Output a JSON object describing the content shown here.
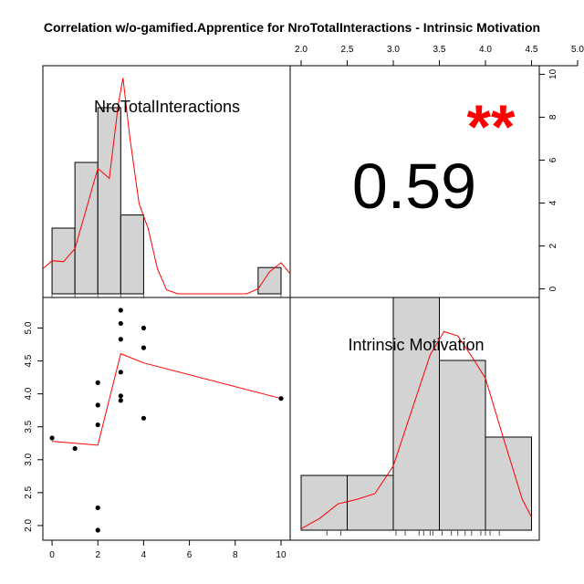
{
  "chart_data": {
    "type": "scatter",
    "title": "Correlation w/o-gamified.Apprentice for NroTotalInteractions - Intrinsic Motivation",
    "variables": [
      "NroTotalInteractions",
      "Intrinsic Motivation"
    ],
    "correlation": {
      "value": "0.59",
      "significance": "**",
      "color": "#ff0000"
    },
    "x_axis": {
      "ticks": [
        "0",
        "2",
        "4",
        "6",
        "8",
        "10"
      ],
      "range": [
        -0.4,
        10.4
      ]
    },
    "y_axis": {
      "ticks": [
        "2.0",
        "2.5",
        "3.0",
        "3.5",
        "4.0",
        "4.5",
        "5.0"
      ],
      "range": [
        1.93,
        5.27
      ]
    },
    "top_axis": {
      "ticks": [
        "2.0",
        "2.5",
        "3.0",
        "3.5",
        "4.0",
        "4.5",
        "5.0"
      ]
    },
    "right_axis": {
      "ticks": [
        "0",
        "2",
        "4",
        "6",
        "8",
        "10"
      ],
      "range": [
        -0.4,
        10.4
      ]
    },
    "scatter_points": [
      {
        "x": 0,
        "y": 3.33
      },
      {
        "x": 1,
        "y": 3.17
      },
      {
        "x": 2,
        "y": 1.93
      },
      {
        "x": 2,
        "y": 2.27
      },
      {
        "x": 2,
        "y": 3.53
      },
      {
        "x": 2,
        "y": 3.83
      },
      {
        "x": 2,
        "y": 4.17
      },
      {
        "x": 3,
        "y": 3.9
      },
      {
        "x": 3,
        "y": 3.97
      },
      {
        "x": 3,
        "y": 4.33
      },
      {
        "x": 3,
        "y": 4.83
      },
      {
        "x": 3,
        "y": 5.07
      },
      {
        "x": 3,
        "y": 5.27
      },
      {
        "x": 4,
        "y": 3.63
      },
      {
        "x": 4,
        "y": 4.7
      },
      {
        "x": 4,
        "y": 5.0
      },
      {
        "x": 10,
        "y": 3.93
      }
    ],
    "smooth_line": [
      {
        "x": 0,
        "y": 3.28
      },
      {
        "x": 2,
        "y": 3.22
      },
      {
        "x": 3,
        "y": 4.61
      },
      {
        "x": 4,
        "y": 4.47
      },
      {
        "x": 10,
        "y": 3.93
      }
    ],
    "hist_x": {
      "bins": [
        {
          "from": 0,
          "to": 1,
          "count": 3
        },
        {
          "from": 1,
          "to": 2,
          "count": 6
        },
        {
          "from": 2,
          "to": 3,
          "count": 8.5
        },
        {
          "from": 3,
          "to": 4,
          "count": 3.6
        },
        {
          "from": 9,
          "to": 10,
          "count": 1.2
        }
      ],
      "density": [
        {
          "x": -0.4,
          "y": 0.25
        },
        {
          "x": 0,
          "y": 0.33
        },
        {
          "x": 0.5,
          "y": 0.32
        },
        {
          "x": 1,
          "y": 0.45
        },
        {
          "x": 1.5,
          "y": 0.85
        },
        {
          "x": 2,
          "y": 1.25
        },
        {
          "x": 2.5,
          "y": 1.15
        },
        {
          "x": 2.9,
          "y": 1.9
        },
        {
          "x": 3.1,
          "y": 2.15
        },
        {
          "x": 3.4,
          "y": 1.55
        },
        {
          "x": 3.8,
          "y": 0.9
        },
        {
          "x": 4.2,
          "y": 0.65
        },
        {
          "x": 4.6,
          "y": 0.25
        },
        {
          "x": 5,
          "y": 0.04
        },
        {
          "x": 5.5,
          "y": 0.0
        },
        {
          "x": 8.5,
          "y": 0.0
        },
        {
          "x": 9.0,
          "y": 0.05
        },
        {
          "x": 9.5,
          "y": 0.22
        },
        {
          "x": 10,
          "y": 0.31
        },
        {
          "x": 10.4,
          "y": 0.2
        }
      ],
      "rug": [
        0,
        1,
        2,
        3,
        4,
        10
      ]
    },
    "hist_y": {
      "bins": [
        {
          "from": 2.0,
          "to": 2.5,
          "count": 2
        },
        {
          "from": 2.5,
          "to": 3.0,
          "count": 2
        },
        {
          "from": 3.0,
          "to": 3.5,
          "count": 8.5
        },
        {
          "from": 3.5,
          "to": 4.0,
          "count": 6.2
        },
        {
          "from": 4.0,
          "to": 4.5,
          "count": 3.4
        }
      ],
      "density": [
        {
          "x": 2.0,
          "y": 0.05
        },
        {
          "x": 2.2,
          "y": 0.4
        },
        {
          "x": 2.4,
          "y": 0.9
        },
        {
          "x": 2.6,
          "y": 1.05
        },
        {
          "x": 2.8,
          "y": 1.25
        },
        {
          "x": 3.0,
          "y": 2.2
        },
        {
          "x": 3.2,
          "y": 4.1
        },
        {
          "x": 3.4,
          "y": 6.0
        },
        {
          "x": 3.55,
          "y": 6.8
        },
        {
          "x": 3.7,
          "y": 6.65
        },
        {
          "x": 3.85,
          "y": 5.95
        },
        {
          "x": 4.0,
          "y": 5.2
        },
        {
          "x": 4.2,
          "y": 3.1
        },
        {
          "x": 4.4,
          "y": 1.05
        },
        {
          "x": 4.5,
          "y": 0.45
        }
      ],
      "rug": [
        2.28,
        2.43,
        3.03,
        3.13,
        3.28,
        3.33,
        3.4,
        3.43,
        3.53,
        3.63,
        3.7,
        3.78,
        3.85,
        3.95,
        4.0,
        4.05,
        4.15
      ]
    },
    "colors": {
      "bar_fill": "#d3d3d3",
      "line": "#ff0000",
      "points": "#000000"
    }
  }
}
